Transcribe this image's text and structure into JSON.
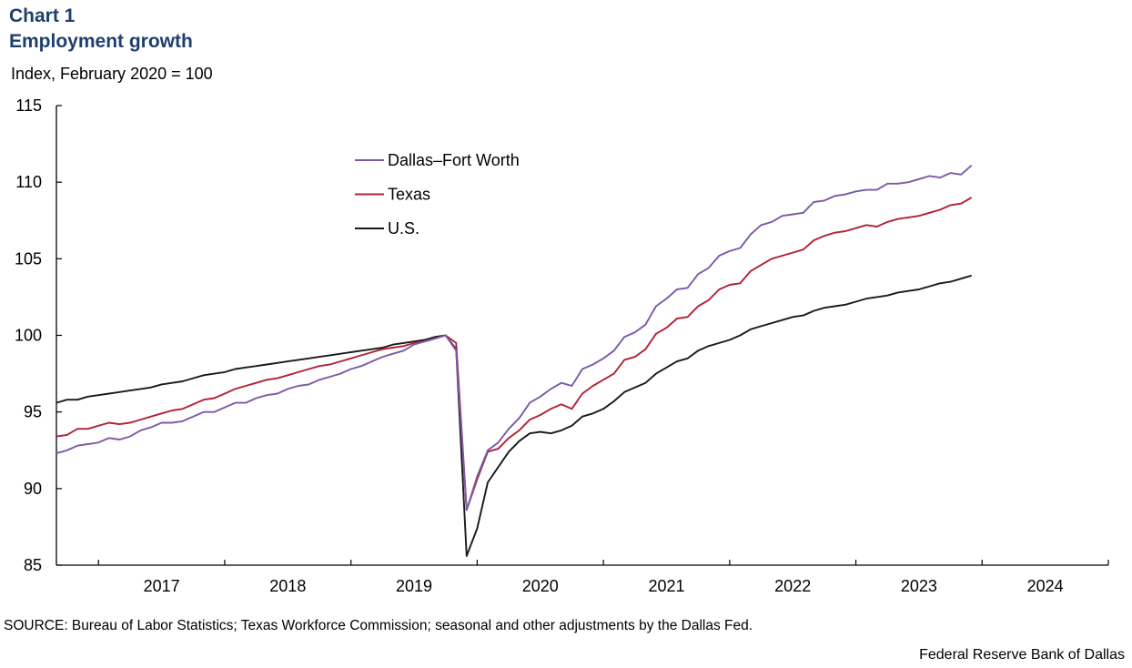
{
  "header": {
    "chart_number": "Chart 1",
    "title": "Employment growth",
    "units": "Index, February 2020 = 100"
  },
  "footer": {
    "source": "SOURCE: Bureau of Labor Statistics; Texas Workforce Commission; seasonal and other adjustments by the Dallas Fed.",
    "credit": "Federal Reserve Bank of Dallas"
  },
  "chart_data": {
    "type": "line",
    "title": "Employment growth",
    "ylabel": "Index, February 2020 = 100",
    "xlabel": "",
    "ylim": [
      85,
      115
    ],
    "yticks": [
      85,
      90,
      95,
      100,
      105,
      110,
      115
    ],
    "xlim": [
      "2016-09",
      "2024-12"
    ],
    "x_tick_labels": [
      "2017",
      "2018",
      "2019",
      "2020",
      "2021",
      "2022",
      "2023",
      "2024"
    ],
    "x_start": "2016-09",
    "grid": false,
    "legend_position": "top-center",
    "series": [
      {
        "name": "Dallas–Fort Worth",
        "color": "#7b5aa6",
        "values": [
          92.3,
          92.5,
          92.8,
          92.9,
          93.0,
          93.3,
          93.2,
          93.4,
          93.8,
          94.0,
          94.3,
          94.3,
          94.4,
          94.7,
          95.0,
          95.0,
          95.3,
          95.6,
          95.6,
          95.9,
          96.1,
          96.2,
          96.5,
          96.7,
          96.8,
          97.1,
          97.3,
          97.5,
          97.8,
          98.0,
          98.3,
          98.6,
          98.8,
          99.0,
          99.4,
          99.6,
          99.8,
          100.0,
          99.0,
          88.6,
          90.8,
          92.5,
          93.0,
          93.9,
          94.6,
          95.6,
          96.0,
          96.5,
          96.9,
          96.7,
          97.8,
          98.1,
          98.5,
          99.0,
          99.9,
          100.2,
          100.7,
          101.9,
          102.4,
          103.0,
          103.1,
          104.0,
          104.4,
          105.2,
          105.5,
          105.7,
          106.6,
          107.2,
          107.4,
          107.8,
          107.9,
          108.0,
          108.7,
          108.8,
          109.1,
          109.2,
          109.4,
          109.5,
          109.5,
          109.9,
          109.9,
          110.0,
          110.2,
          110.4,
          110.3,
          110.6,
          110.5,
          111.1
        ]
      },
      {
        "name": "Texas",
        "color": "#b22234",
        "values": [
          93.4,
          93.5,
          93.9,
          93.9,
          94.1,
          94.3,
          94.2,
          94.3,
          94.5,
          94.7,
          94.9,
          95.1,
          95.2,
          95.5,
          95.8,
          95.9,
          96.2,
          96.5,
          96.7,
          96.9,
          97.1,
          97.2,
          97.4,
          97.6,
          97.8,
          98.0,
          98.1,
          98.3,
          98.5,
          98.7,
          98.9,
          99.1,
          99.2,
          99.3,
          99.5,
          99.6,
          99.8,
          100.0,
          99.5,
          88.6,
          90.6,
          92.4,
          92.6,
          93.3,
          93.8,
          94.5,
          94.8,
          95.2,
          95.5,
          95.2,
          96.2,
          96.7,
          97.1,
          97.5,
          98.4,
          98.6,
          99.1,
          100.1,
          100.5,
          101.1,
          101.2,
          101.9,
          102.3,
          103.0,
          103.3,
          103.4,
          104.2,
          104.6,
          105.0,
          105.2,
          105.4,
          105.6,
          106.2,
          106.5,
          106.7,
          106.8,
          107.0,
          107.2,
          107.1,
          107.4,
          107.6,
          107.7,
          107.8,
          108.0,
          108.2,
          108.5,
          108.6,
          109.0
        ]
      },
      {
        "name": "U.S.",
        "color": "#1a1a1a",
        "values": [
          95.6,
          95.8,
          95.8,
          96.0,
          96.1,
          96.2,
          96.3,
          96.4,
          96.5,
          96.6,
          96.8,
          96.9,
          97.0,
          97.2,
          97.4,
          97.5,
          97.6,
          97.8,
          97.9,
          98.0,
          98.1,
          98.2,
          98.3,
          98.4,
          98.5,
          98.6,
          98.7,
          98.8,
          98.9,
          99.0,
          99.1,
          99.2,
          99.4,
          99.5,
          99.6,
          99.7,
          99.9,
          100.0,
          99.1,
          85.6,
          87.4,
          90.4,
          91.4,
          92.4,
          93.1,
          93.6,
          93.7,
          93.6,
          93.8,
          94.1,
          94.7,
          94.9,
          95.2,
          95.7,
          96.3,
          96.6,
          96.9,
          97.5,
          97.9,
          98.3,
          98.5,
          99.0,
          99.3,
          99.5,
          99.7,
          100.0,
          100.4,
          100.6,
          100.8,
          101.0,
          101.2,
          101.3,
          101.6,
          101.8,
          101.9,
          102.0,
          102.2,
          102.4,
          102.5,
          102.6,
          102.8,
          102.9,
          103.0,
          103.2,
          103.4,
          103.5,
          103.7,
          103.9
        ]
      }
    ]
  }
}
